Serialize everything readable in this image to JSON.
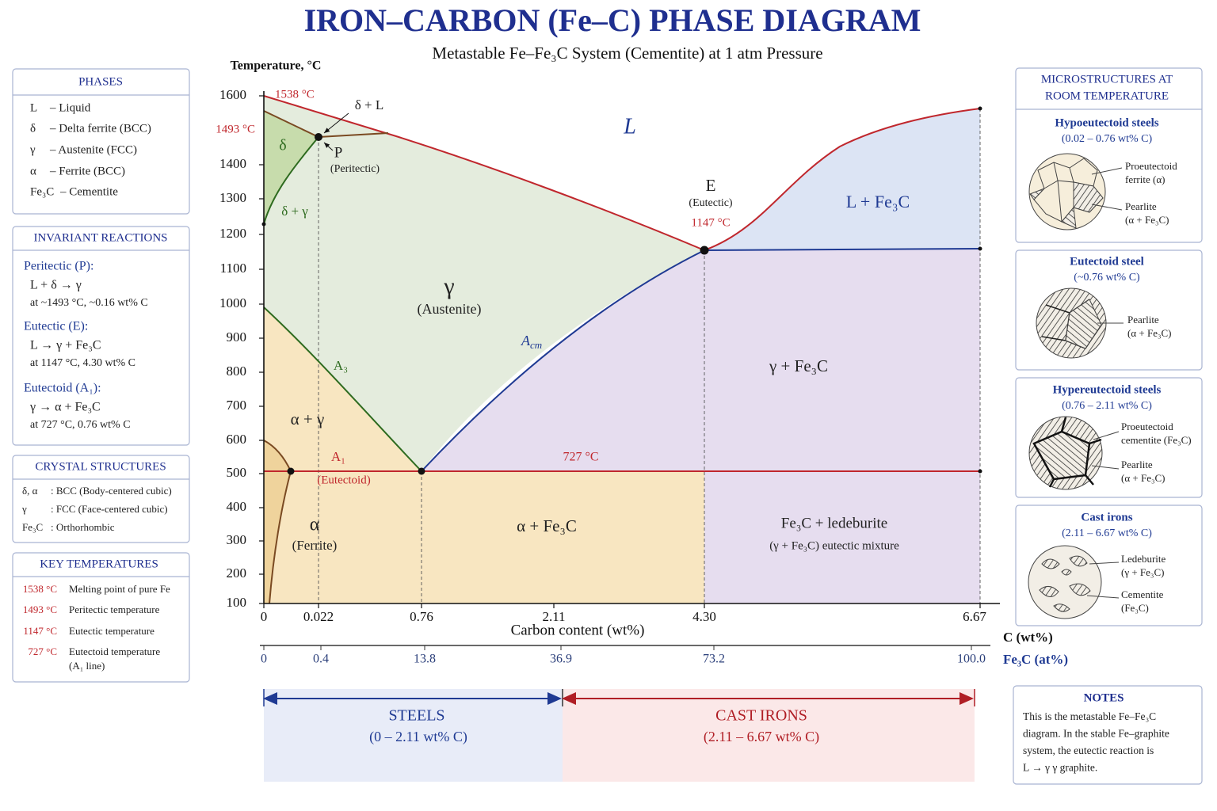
{
  "header": {
    "title": "IRON–CARBON (Fe–C) PHASE DIAGRAM",
    "subtitle": "Metastable Fe–Fe₃C System (Cementite) at 1 atm Pressure"
  },
  "diagram": {
    "y_axis_label": "Temperature, °C",
    "y_ticks": [
      1600,
      1400,
      1300,
      1200,
      1100,
      1000,
      900,
      800,
      700,
      600,
      500,
      400,
      300,
      200,
      100
    ],
    "x_ticks": [
      "0",
      "0.022",
      "0.76",
      "2.11",
      "4.30",
      "6.67"
    ],
    "x_axis_label": "Carbon content (wt%)",
    "x_unit_label": "C (wt%)",
    "at_ticks": [
      "0",
      "0.4",
      "13.8",
      "36.9",
      "73.2",
      "100.0"
    ],
    "at_unit_label": "Fe₃C (at%)",
    "labels": {
      "melt_temp": "1538 °C",
      "peritectic_temp": "1493 °C",
      "delta_liquid": "δ + L",
      "peritectic_point": "P",
      "peritectic_name": "(Peritectic)",
      "delta": "δ",
      "delta_gamma": "δ + γ",
      "liquid": "L",
      "eutectic_point": "E",
      "eutectic_name": "(Eutectic)",
      "eutectic_temp": "1147 °C",
      "liquid_cementite": "L + Fe₃C",
      "gamma": "γ",
      "gamma_name": "(Austenite)",
      "a3": "A₃",
      "gamma_cementite": "γ + Fe₃C",
      "alpha_gamma": "α + γ",
      "a1": "A₁",
      "eutectoid_name": "(Eutectoid)",
      "eutectoid_temp": "727 °C",
      "alpha": "α",
      "alpha_name": "(Ferrite)",
      "alpha_cementite": "α + Fe₃C",
      "ledeburite": "Fe₃C + ledeburite",
      "ledeburite_note": "(γ + Fe₃C) eutectic mixture"
    },
    "acm": {
      "main": "A",
      "sub": "cm"
    }
  },
  "ranges": {
    "steels": {
      "label": "STEELS",
      "range": "(0 – 2.11 wt% C)"
    },
    "cast_irons": {
      "label": "CAST IRONS",
      "range": "(2.11 – 6.67 wt% C)"
    }
  },
  "phases": {
    "title": "PHASES",
    "items": [
      {
        "symbol": "L",
        "text": "– Liquid"
      },
      {
        "symbol": "δ",
        "text": "– Delta ferrite (BCC)"
      },
      {
        "symbol": "γ",
        "text": "– Austenite (FCC)"
      },
      {
        "symbol": "α",
        "text": "– Ferrite (BCC)"
      },
      {
        "symbol": "Fe₃C",
        "text": "– Cementite"
      }
    ]
  },
  "invariant_reactions": {
    "title": "INVARIANT REACTIONS",
    "items": [
      {
        "name": "Peritectic (P):",
        "equation": "L + δ → γ",
        "condition": "at ~1493 °C, ~0.16 wt% C"
      },
      {
        "name": "Eutectic (E):",
        "equation": "L → γ + Fe₃C",
        "condition": "at 1147 °C, 4.30 wt% C"
      },
      {
        "name": "Eutectoid (A₁):",
        "equation": "γ → α + Fe₃C",
        "condition": "at 727 °C, 0.76 wt% C"
      }
    ]
  },
  "crystal_structures": {
    "title": "CRYSTAL STRUCTURES",
    "items": [
      {
        "symbol": "δ, α",
        "text": ": BCC (Body-centered cubic)"
      },
      {
        "symbol": "γ",
        "text": ": FCC (Face-centered cubic)"
      },
      {
        "symbol": "Fe₃C",
        "text": ": Orthorhombic"
      }
    ]
  },
  "key_temperatures": {
    "title": "KEY TEMPERATURES",
    "items": [
      {
        "temp": "1538 °C",
        "text": "Melting point of pure Fe"
      },
      {
        "temp": "1493 °C",
        "text": "Peritectic temperature"
      },
      {
        "temp": "1147 °C",
        "text": "Eutectic temperature"
      },
      {
        "temp": "727 °C",
        "text": "Eutectoid temperature",
        "note": "(A₁ line)"
      }
    ]
  },
  "microstructures": {
    "title": [
      "MICROSTRUCTURES AT",
      "ROOM TEMPERATURE"
    ],
    "panels": [
      {
        "title": "Hypoeutectoid steels",
        "range": "(0.02 – 0.76 wt% C)",
        "callouts": [
          [
            "Proeutectoid",
            "ferrite (α)"
          ],
          [
            "Pearlite",
            "(α + Fe₃C)"
          ]
        ]
      },
      {
        "title": "Eutectoid steel",
        "range": "(~0.76 wt% C)",
        "callouts": [
          [
            "Pearlite",
            "(α + Fe₃C)"
          ]
        ]
      },
      {
        "title": "Hypereutectoid steels",
        "range": "(0.76 – 2.11 wt% C)",
        "callouts": [
          [
            "Proeutectoid",
            "cementite (Fe₃C)"
          ],
          [
            "Pearlite",
            "(α + Fe₃C)"
          ]
        ]
      },
      {
        "title": "Cast irons",
        "range": "(2.11 – 6.67 wt% C)",
        "callouts": [
          [
            "Ledeburite",
            "(γ + Fe₃C)"
          ],
          [
            "Cementite",
            "(Fe₃C)"
          ]
        ]
      }
    ]
  },
  "notes": {
    "title": "NOTES",
    "lines": [
      "This is the metastable Fe–Fe₃C",
      "diagram. In the stable Fe–graphite",
      "system, the eutectic reaction is",
      "L → γ γ graphite."
    ]
  }
}
